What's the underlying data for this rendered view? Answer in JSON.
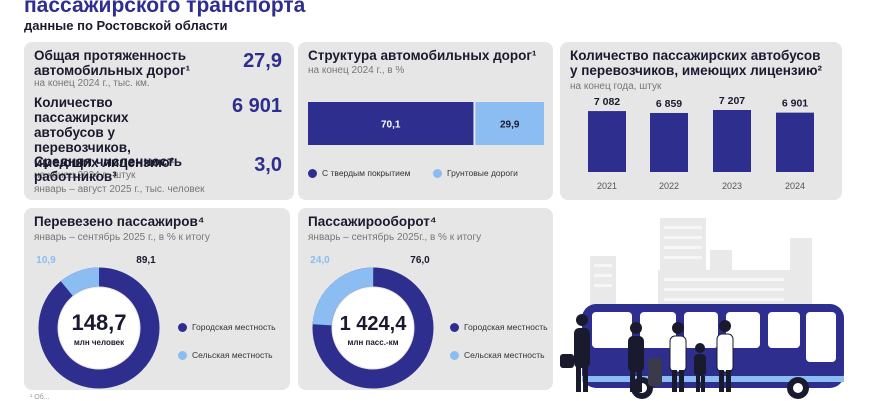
{
  "header": {
    "title": "пассажирского транспорта",
    "subtitle": "данные по Ростовской области"
  },
  "stats": [
    {
      "label_line1": "Общая протяженность",
      "label_line2": "автомобильных дорог¹",
      "sub": "на конец 2024 г., тыс. км.",
      "value": "27,9"
    },
    {
      "label_line1": "Количество пассажирских",
      "label_line2": "автобусов у перевозчиков,",
      "label_line3": "имеющих лицензию²",
      "sub": "на конец 2024 г., штук",
      "value": "6 901"
    },
    {
      "label_line1": "Средняя численность",
      "label_line2": "работников³",
      "sub": "январь – август 2025 г.,  тыс. человек",
      "value": "3,0"
    }
  ],
  "roads": {
    "title": "Структура автомобильных дорог¹",
    "sub": "на конец 2024 г., в %",
    "legend": [
      "С твердым покрытием",
      "Грунтовые дороги"
    ]
  },
  "buses": {
    "title_line1": "Количество пассажирских автобусов",
    "title_line2": "у перевозчиков, имеющих лицензию²",
    "sub": "на конец года, штук"
  },
  "passengers": {
    "title": "Перевезено пассажиров⁴",
    "sub": "январь – сентябрь 2025 г., в % к итогу",
    "center_value": "148,7",
    "center_unit": "млн человек",
    "legend": [
      "Городская местность",
      "Сельская местность"
    ]
  },
  "turnover": {
    "title": "Пассажирооборот⁴",
    "sub": "январь – сентябрь 2025г., в % к итогу",
    "center_value": "1 424,4",
    "center_unit": "млн пасс.-км",
    "legend": [
      "Городская местность",
      "Сельская местность"
    ]
  },
  "colors": {
    "primary": "#2e2e8f",
    "secondary": "#8bbcf2",
    "card": "#e6e6e6"
  },
  "chart_data": [
    {
      "type": "bar",
      "categories": [
        "2021",
        "2022",
        "2023",
        "2024"
      ],
      "values": [
        7082,
        6859,
        7207,
        6901
      ],
      "value_labels": [
        "7 082",
        "6 859",
        "7 207",
        "6 901"
      ]
    },
    {
      "type": "bar",
      "stacked": true,
      "categories": [
        "С твердым покрытием",
        "Грунтовые дороги"
      ],
      "values": [
        70.1,
        29.9
      ],
      "value_labels": [
        "70,1",
        "29,9"
      ]
    },
    {
      "type": "pie",
      "categories": [
        "Городская местность",
        "Сельская местность"
      ],
      "values": [
        89.1,
        10.9
      ],
      "value_labels": [
        "89,1",
        "10,9"
      ]
    },
    {
      "type": "pie",
      "categories": [
        "Городская местность",
        "Сельская местность"
      ],
      "values": [
        76.0,
        24.0
      ],
      "value_labels": [
        "76,0",
        "24,0"
      ]
    }
  ]
}
